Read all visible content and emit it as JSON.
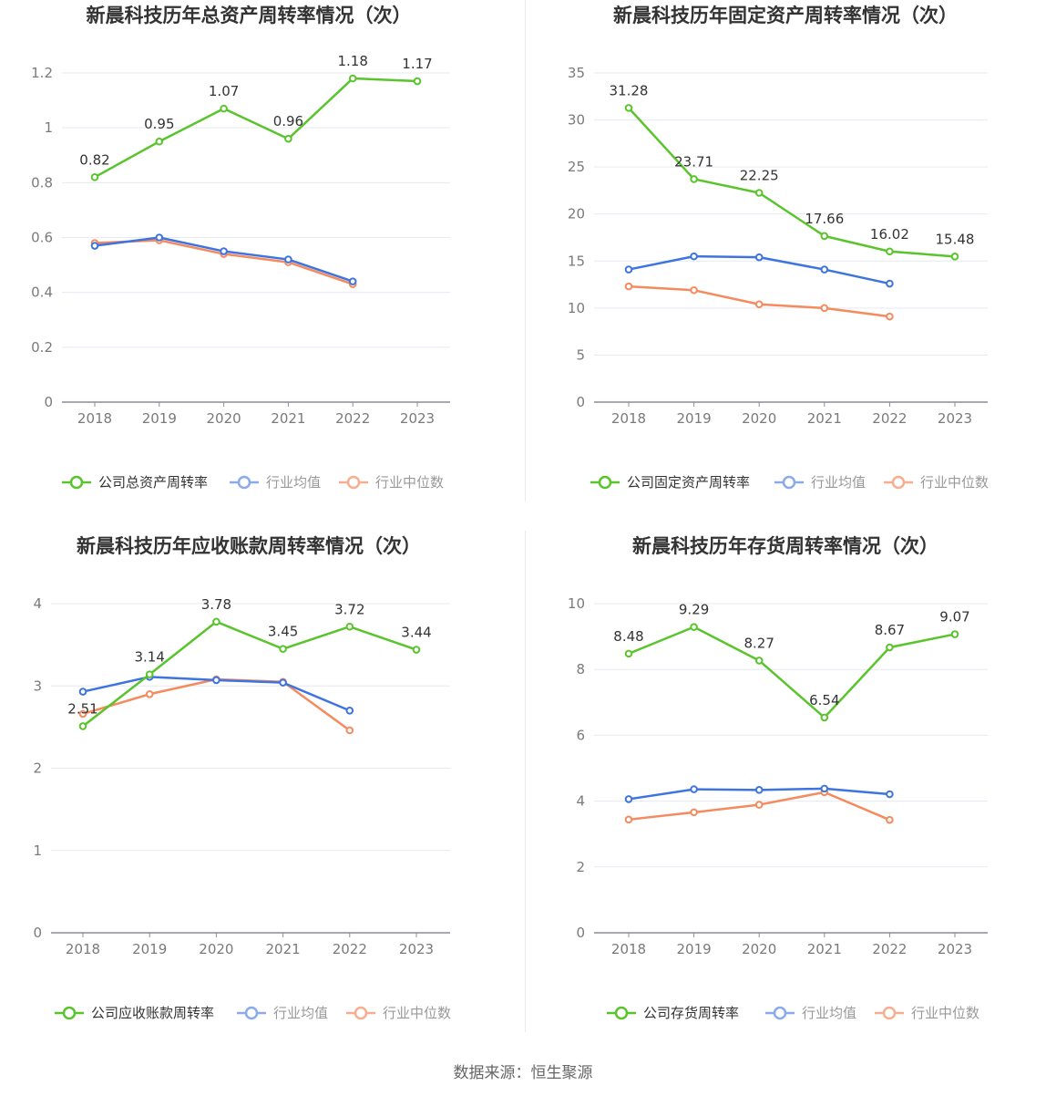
{
  "source_text": "数据来源：恒生聚源",
  "colors": {
    "company": "#5ac42c",
    "industry_avg": "#3d74e0",
    "industry_median": "#f58a5e",
    "legend_avg": "#8aaaea",
    "legend_median": "#f7ae90",
    "grid": "#e6e9f2",
    "axis": "#8c8c9a"
  },
  "chart_data": [
    {
      "type": "line",
      "title": "新晨科技历年总资产周转率情况（次）",
      "categories": [
        "2018",
        "2019",
        "2020",
        "2021",
        "2022",
        "2023"
      ],
      "ylim": [
        0,
        1.2
      ],
      "yticks": [
        0,
        0.2,
        0.4,
        0.6,
        0.8,
        1,
        1.2
      ],
      "ytick_labels": [
        "0",
        "0.2",
        "0.4",
        "0.6",
        "0.8",
        "1",
        "1.2"
      ],
      "grid": true,
      "legend_position": "bottom",
      "series": [
        {
          "name": "公司总资产周转率",
          "values": [
            0.82,
            0.95,
            1.07,
            0.96,
            1.18,
            1.17
          ],
          "labels": [
            "0.82",
            "0.95",
            "1.07",
            "0.96",
            "1.18",
            "1.17"
          ]
        },
        {
          "name": "行业均值",
          "values": [
            0.57,
            0.6,
            0.55,
            0.52,
            0.44,
            null
          ]
        },
        {
          "name": "行业中位数",
          "values": [
            0.58,
            0.59,
            0.54,
            0.51,
            0.43,
            null
          ]
        }
      ]
    },
    {
      "type": "line",
      "title": "新晨科技历年固定资产周转率情况（次）",
      "categories": [
        "2018",
        "2019",
        "2020",
        "2021",
        "2022",
        "2023"
      ],
      "ylim": [
        0,
        35
      ],
      "yticks": [
        0,
        5,
        10,
        15,
        20,
        25,
        30,
        35
      ],
      "ytick_labels": [
        "0",
        "5",
        "10",
        "15",
        "20",
        "25",
        "30",
        "35"
      ],
      "grid": true,
      "legend_position": "bottom",
      "series": [
        {
          "name": "公司固定资产周转率",
          "values": [
            31.28,
            23.71,
            22.25,
            17.66,
            16.02,
            15.48
          ],
          "labels": [
            "31.28",
            "23.71",
            "22.25",
            "17.66",
            "16.02",
            "15.48"
          ]
        },
        {
          "name": "行业均值",
          "values": [
            14.1,
            15.5,
            15.4,
            14.1,
            12.6,
            null
          ]
        },
        {
          "name": "行业中位数",
          "values": [
            12.3,
            11.9,
            10.4,
            10.0,
            9.1,
            null
          ]
        }
      ]
    },
    {
      "type": "line",
      "title": "新晨科技历年应收账款周转率情况（次）",
      "categories": [
        "2018",
        "2019",
        "2020",
        "2021",
        "2022",
        "2023"
      ],
      "ylim": [
        0,
        4
      ],
      "yticks": [
        0,
        1,
        2,
        3,
        4
      ],
      "ytick_labels": [
        "0",
        "1",
        "2",
        "3",
        "4"
      ],
      "grid": true,
      "legend_position": "bottom",
      "series": [
        {
          "name": "公司应收账款周转率",
          "values": [
            2.51,
            3.14,
            3.78,
            3.45,
            3.72,
            3.44
          ],
          "labels": [
            "2.51",
            "3.14",
            "3.78",
            "3.45",
            "3.72",
            "3.44"
          ]
        },
        {
          "name": "行业均值",
          "values": [
            2.93,
            3.11,
            3.07,
            3.04,
            2.7,
            null
          ]
        },
        {
          "name": "行业中位数",
          "values": [
            2.66,
            2.9,
            3.08,
            3.05,
            2.46,
            null
          ]
        }
      ]
    },
    {
      "type": "line",
      "title": "新晨科技历年存货周转率情况（次）",
      "categories": [
        "2018",
        "2019",
        "2020",
        "2021",
        "2022",
        "2023"
      ],
      "ylim": [
        0,
        10
      ],
      "yticks": [
        0,
        2,
        4,
        6,
        8,
        10
      ],
      "ytick_labels": [
        "0",
        "2",
        "4",
        "6",
        "8",
        "10"
      ],
      "grid": true,
      "legend_position": "bottom",
      "series": [
        {
          "name": "公司存货周转率",
          "values": [
            8.48,
            9.29,
            8.27,
            6.54,
            8.67,
            9.07
          ],
          "labels": [
            "8.48",
            "9.29",
            "8.27",
            "6.54",
            "8.67",
            "9.07"
          ]
        },
        {
          "name": "行业均值",
          "values": [
            4.06,
            4.36,
            4.34,
            4.38,
            4.21,
            null
          ]
        },
        {
          "name": "行业中位数",
          "values": [
            3.44,
            3.66,
            3.89,
            4.27,
            3.43,
            null
          ]
        }
      ]
    }
  ]
}
